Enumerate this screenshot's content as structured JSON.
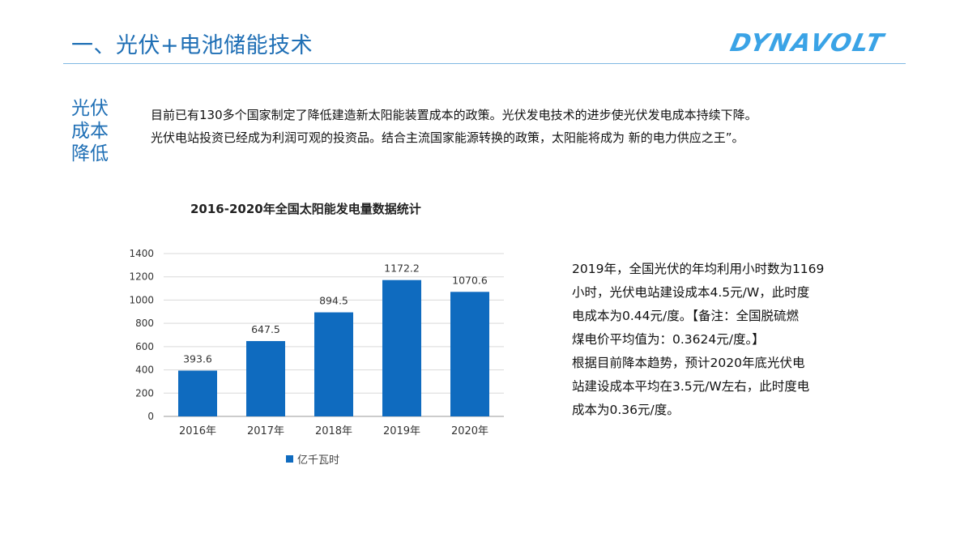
{
  "header": {
    "title": "一、光伏+电池储能技术",
    "logo_text": "DYNAVOLT"
  },
  "side_heading": {
    "line1": "光伏",
    "line2": "成本",
    "line3": "降低"
  },
  "intro": {
    "line1": "目前已有130多个国家制定了降低建造新太阳能装置成本的政策。光伏发电技术的进步使光伏发电成本持续下降。",
    "line2": "光伏电站投资已经成为利润可观的投资品。结合主流国家能源转换的政策，太阳能将成为 新的电力供应之王”。"
  },
  "chart_data": {
    "type": "bar",
    "title": "2016-2020年全国太阳能发电量数据统计",
    "categories": [
      "2016年",
      "2017年",
      "2018年",
      "2019年",
      "2020年"
    ],
    "series": [
      {
        "name": "亿千瓦时",
        "values": [
          393.6,
          647.5,
          894.5,
          1172.2,
          1070.6
        ]
      }
    ],
    "value_labels": [
      "393.6",
      "647.5",
      "894.5",
      "1172.2",
      "1070.6"
    ],
    "ylim": [
      0,
      1400
    ],
    "yticks": [
      0,
      200,
      400,
      600,
      800,
      1000,
      1200,
      1400
    ],
    "grid": true,
    "legend": "bottom",
    "color": "#0f6bbf"
  },
  "notes": {
    "line1": "2019年，全国光伏的年均利用小时数为1169",
    "line2": "小时，光伏电站建设成本4.5元/W，此时度",
    "line3": "电成本为0.44元/度。【备注：全国脱硫燃",
    "line4": "煤电价平均值为：0.3624元/度。】",
    "line5": "根据目前降本趋势，预计2020年底光伏电",
    "line6": "站建设成本平均在3.5元/W左右，此时度电",
    "line7": "成本为0.36元/度。"
  }
}
